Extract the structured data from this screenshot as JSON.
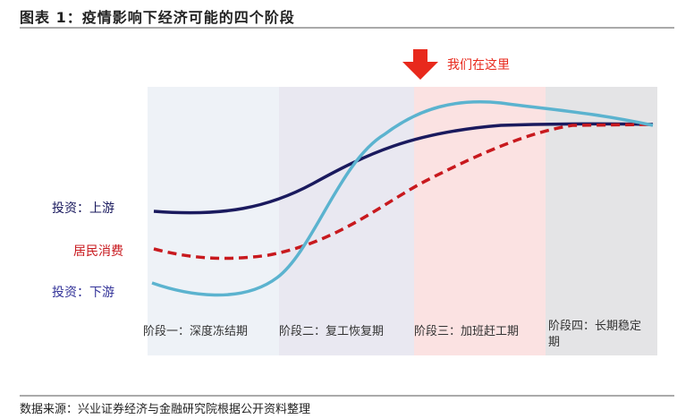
{
  "title": "图表 1：疫情影响下经济可能的四个阶段",
  "arrow_label": "我们在这里",
  "series_labels": [
    "投资：上游",
    "居民消费",
    "投资：下游"
  ],
  "stages": [
    "阶段一：深度冻结期",
    "阶段二：复工恢复期",
    "阶段三：加班赶工期",
    "阶段四：长期稳定期"
  ],
  "source": "数据来源：兴业证券经济与金融研究院根据公开资料整理"
}
